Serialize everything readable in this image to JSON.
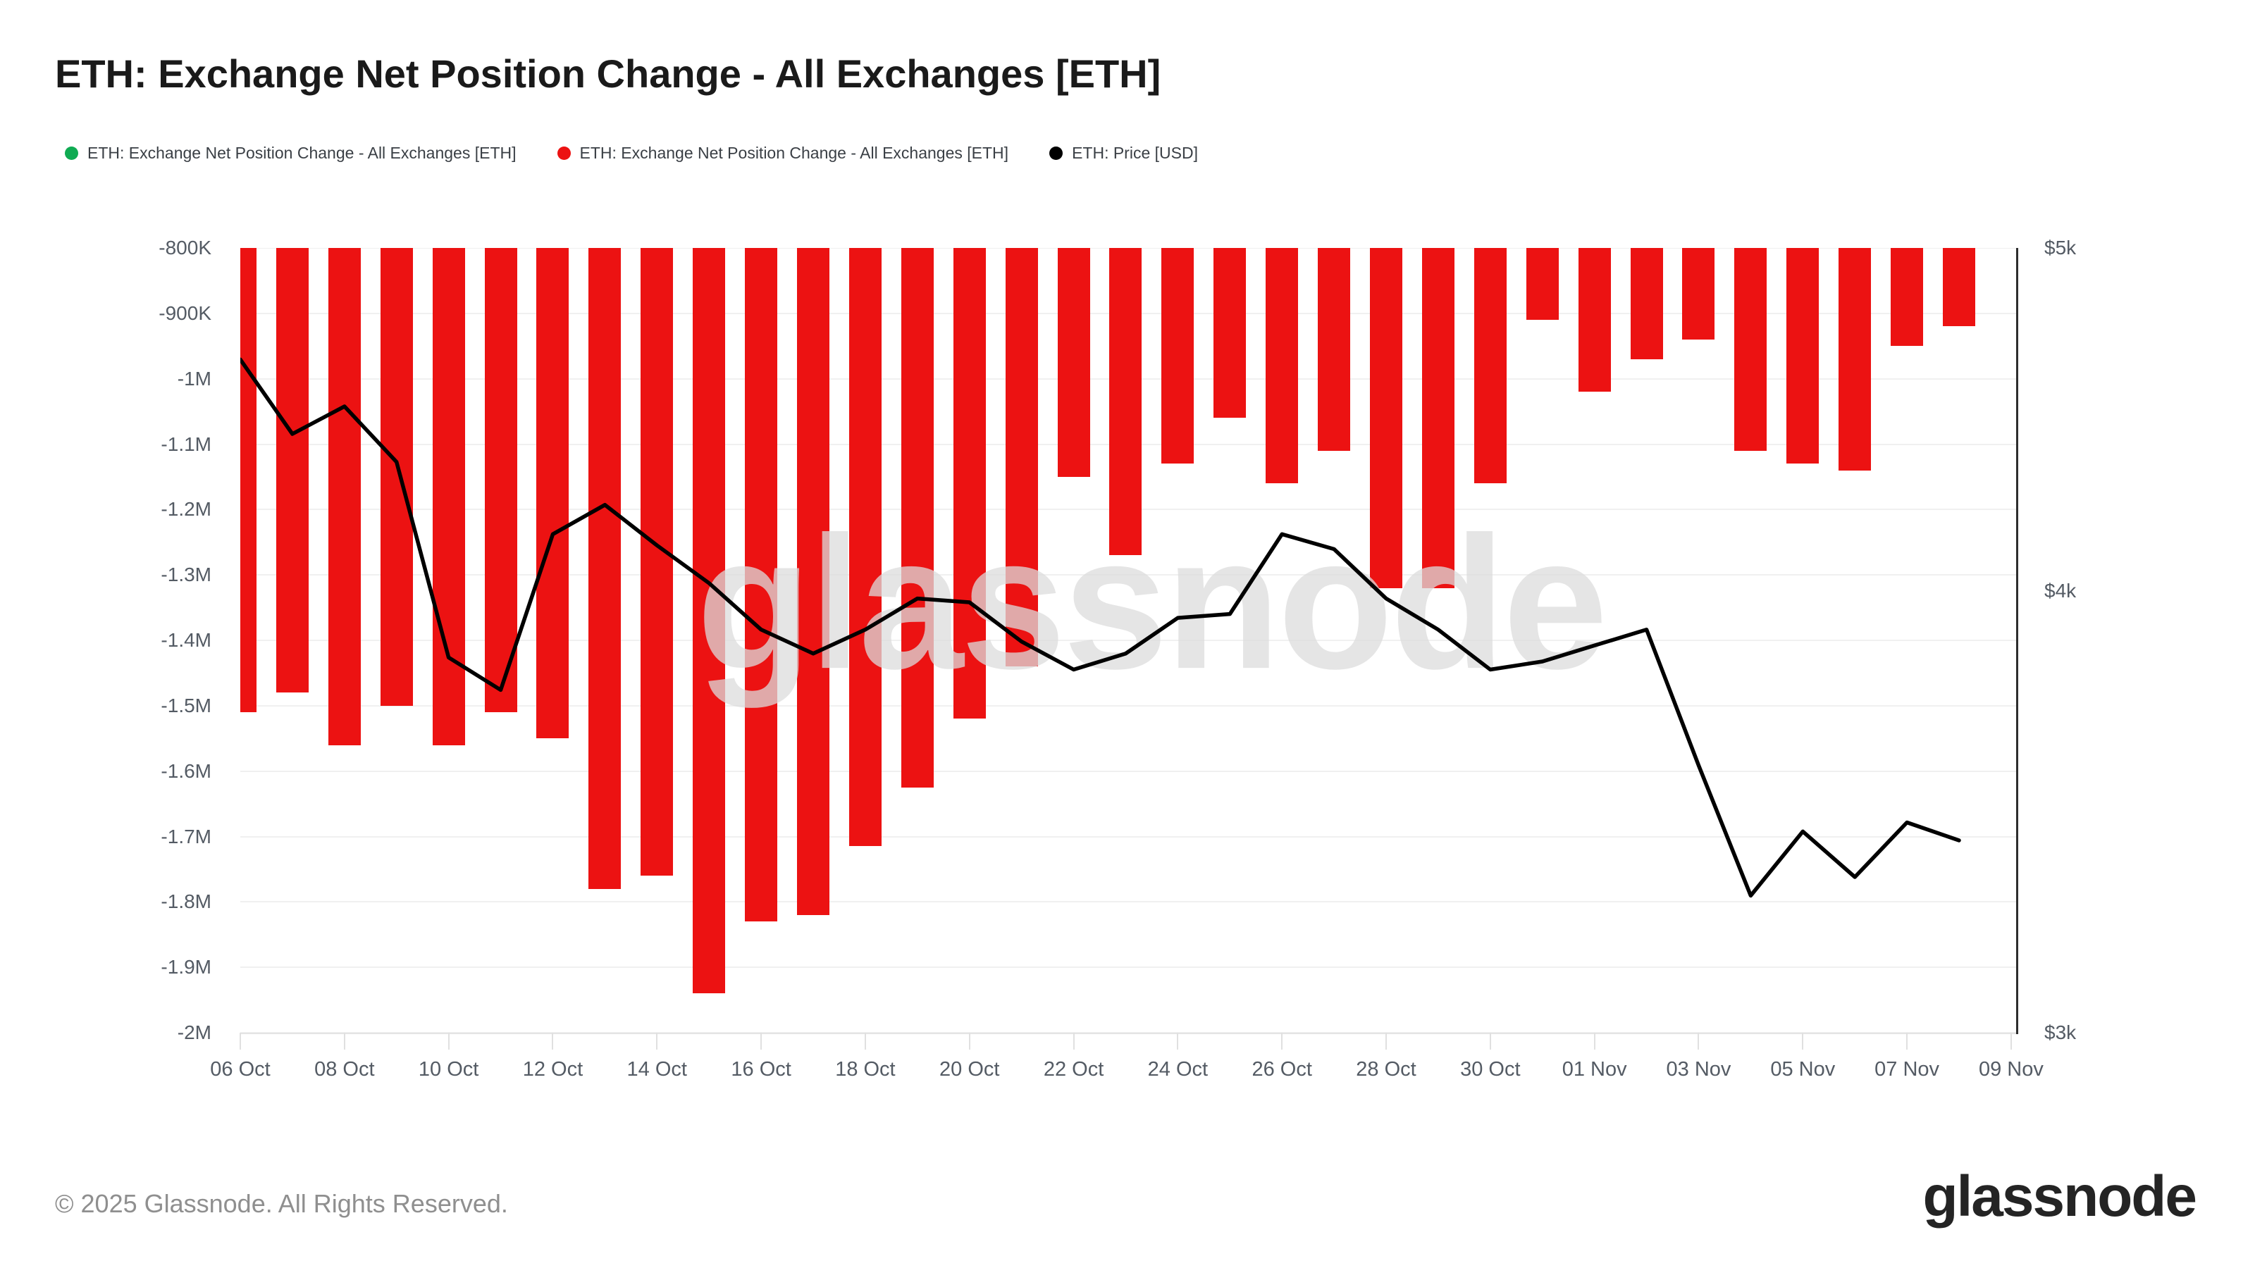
{
  "header": {
    "title": "ETH: Exchange Net Position Change - All Exchanges [ETH]"
  },
  "legend": {
    "items": [
      {
        "label": "ETH: Exchange Net Position Change - All Exchanges [ETH]",
        "color": "#0fab52",
        "marker": "circle"
      },
      {
        "label": "ETH: Exchange Net Position Change - All Exchanges [ETH]",
        "color": "#ec1212",
        "marker": "circle"
      },
      {
        "label": "ETH: Price [USD]",
        "color": "#000000",
        "marker": "circle"
      }
    ]
  },
  "watermark_text": "glassnode",
  "footer": {
    "copyright": "© 2025 Glassnode. All Rights Reserved.",
    "logo_text": "glassnode"
  },
  "chart_data": {
    "type": "bar+line",
    "title": "ETH: Exchange Net Position Change - All Exchanges [ETH]",
    "legend_position": "top",
    "grid": "horizontal",
    "categories": [
      "06 Oct",
      "07 Oct",
      "08 Oct",
      "09 Oct",
      "10 Oct",
      "11 Oct",
      "12 Oct",
      "13 Oct",
      "14 Oct",
      "15 Oct",
      "16 Oct",
      "17 Oct",
      "18 Oct",
      "19 Oct",
      "20 Oct",
      "21 Oct",
      "22 Oct",
      "23 Oct",
      "24 Oct",
      "25 Oct",
      "26 Oct",
      "27 Oct",
      "28 Oct",
      "29 Oct",
      "30 Oct",
      "31 Oct",
      "01 Nov",
      "02 Nov",
      "03 Nov",
      "04 Nov",
      "05 Nov",
      "06 Nov",
      "07 Nov",
      "08 Nov"
    ],
    "series": [
      {
        "name": "ETH: Exchange Net Position Change - All Exchanges [ETH]",
        "type": "bar",
        "axis": "left",
        "unit": "ETH",
        "color": "#ec1212",
        "values": [
          -1510000,
          -1480000,
          -1560000,
          -1500000,
          -1560000,
          -1510000,
          -1550000,
          -1780000,
          -1760000,
          -1940000,
          -1830000,
          -1820000,
          -1715000,
          -1625000,
          -1520000,
          -1440000,
          -1150000,
          -1270000,
          -1130000,
          -1060000,
          -1160000,
          -1110000,
          -1320000,
          -1320000,
          -1160000,
          -910000,
          -1020000,
          -970000,
          -940000,
          -1110000,
          -1130000,
          -1140000,
          -950000,
          -920000
        ]
      },
      {
        "name": "ETH: Price [USD]",
        "type": "line",
        "axis": "right",
        "unit": "USD",
        "color": "#000000",
        "values": [
          4650,
          4430,
          4510,
          4350,
          3830,
          3750,
          4150,
          4230,
          4120,
          4020,
          3900,
          3840,
          3900,
          3980,
          3970,
          3870,
          3800,
          3840,
          3930,
          3940,
          4150,
          4110,
          3980,
          3900,
          3800,
          3820,
          3860,
          3900,
          3570,
          3280,
          3420,
          3320,
          3440,
          3400
        ]
      }
    ],
    "left_axis": {
      "min": -2000000,
      "max": -800000,
      "tick_step": 100000,
      "scale": "linear",
      "tick_labels": [
        "-800K",
        "-900K",
        "-1M",
        "-1.1M",
        "-1.2M",
        "-1.3M",
        "-1.4M",
        "-1.5M",
        "-1.6M",
        "-1.7M",
        "-1.8M",
        "-1.9M",
        "-2M"
      ]
    },
    "right_axis": {
      "min": 3000,
      "max": 5000,
      "scale": "log",
      "tick_labels": [
        "$5k",
        "$4k",
        "$3k"
      ],
      "tick_values": [
        5000,
        4000,
        3000
      ]
    },
    "x_axis": {
      "tick_labels": [
        "06 Oct",
        "08 Oct",
        "10 Oct",
        "12 Oct",
        "14 Oct",
        "16 Oct",
        "18 Oct",
        "20 Oct",
        "22 Oct",
        "24 Oct",
        "26 Oct",
        "28 Oct",
        "30 Oct",
        "01 Nov",
        "03 Nov",
        "05 Nov",
        "07 Nov",
        "09 Nov"
      ],
      "tick_day_indices": [
        0,
        2,
        4,
        6,
        8,
        10,
        12,
        14,
        16,
        18,
        20,
        22,
        24,
        26,
        28,
        30,
        32,
        34
      ]
    }
  }
}
